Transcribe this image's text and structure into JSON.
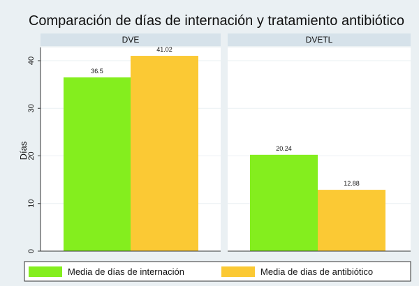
{
  "chart_data": {
    "type": "bar",
    "title": "Comparación de días de internación y tratamiento antibiótico",
    "ylabel": "Días",
    "xlabel": "",
    "ylim": [
      0,
      43
    ],
    "yticks": [
      0,
      10,
      20,
      30,
      40
    ],
    "grid": true,
    "legend_position": "bottom",
    "panels": [
      {
        "label": "DVE",
        "values": [
          36.5,
          41.02
        ],
        "labels": [
          "36.5",
          "41.02"
        ]
      },
      {
        "label": "DVETL",
        "values": [
          20.24,
          12.88
        ],
        "labels": [
          "20.24",
          "12.88"
        ]
      }
    ],
    "series": [
      {
        "name": "Media de días de internación",
        "color": "#84ee1e"
      },
      {
        "name": "Media de dias de antibiótico",
        "color": "#fbc934"
      }
    ]
  }
}
